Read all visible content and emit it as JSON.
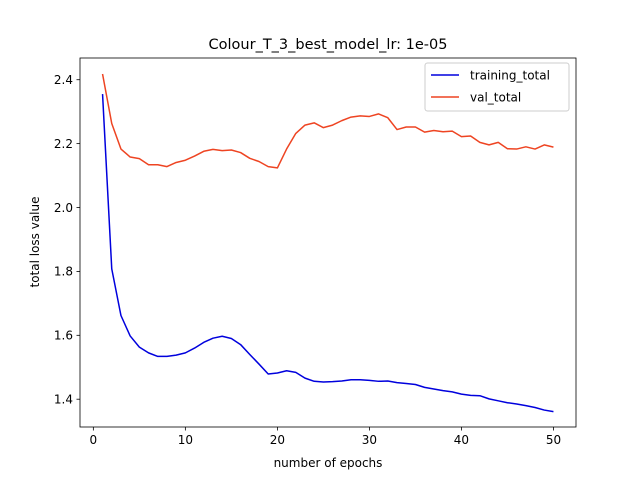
{
  "chart_data": {
    "type": "line",
    "title": "Colour_T_3_best_model_lr: 1e-05",
    "xlabel": "number of epochs",
    "ylabel": "total loss value",
    "xlim": [
      -1.45,
      52.45
    ],
    "ylim": [
      1.313,
      2.468
    ],
    "xticks": [
      0,
      10,
      20,
      30,
      40,
      50
    ],
    "yticks": [
      1.4,
      1.6,
      1.8,
      2.0,
      2.2,
      2.4
    ],
    "grid": false,
    "legend_position": "upper right",
    "x": [
      1,
      2,
      3,
      4,
      5,
      6,
      7,
      8,
      9,
      10,
      11,
      12,
      13,
      14,
      15,
      16,
      17,
      18,
      19,
      20,
      21,
      22,
      23,
      24,
      25,
      26,
      27,
      28,
      29,
      30,
      31,
      32,
      33,
      34,
      35,
      36,
      37,
      38,
      39,
      40,
      41,
      42,
      43,
      44,
      45,
      46,
      47,
      48,
      49,
      50
    ],
    "series": [
      {
        "name": "training_total",
        "color": "#0000dd",
        "values": [
          2.355,
          1.808,
          1.662,
          1.598,
          1.563,
          1.545,
          1.534,
          1.534,
          1.538,
          1.545,
          1.56,
          1.578,
          1.591,
          1.597,
          1.59,
          1.571,
          1.54,
          1.51,
          1.479,
          1.482,
          1.489,
          1.484,
          1.466,
          1.456,
          1.454,
          1.455,
          1.457,
          1.461,
          1.461,
          1.459,
          1.456,
          1.457,
          1.452,
          1.449,
          1.446,
          1.437,
          1.432,
          1.427,
          1.423,
          1.416,
          1.412,
          1.411,
          1.401,
          1.395,
          1.389,
          1.385,
          1.38,
          1.374,
          1.366,
          1.361
        ]
      },
      {
        "name": "val_total",
        "color": "#ee4422",
        "values": [
          2.418,
          2.263,
          2.183,
          2.158,
          2.153,
          2.134,
          2.134,
          2.128,
          2.141,
          2.148,
          2.161,
          2.176,
          2.182,
          2.178,
          2.18,
          2.172,
          2.154,
          2.144,
          2.128,
          2.124,
          2.183,
          2.232,
          2.258,
          2.265,
          2.25,
          2.258,
          2.272,
          2.283,
          2.287,
          2.285,
          2.293,
          2.281,
          2.244,
          2.252,
          2.252,
          2.236,
          2.241,
          2.237,
          2.239,
          2.222,
          2.224,
          2.204,
          2.196,
          2.204,
          2.184,
          2.183,
          2.19,
          2.183,
          2.196,
          2.189
        ]
      }
    ]
  }
}
